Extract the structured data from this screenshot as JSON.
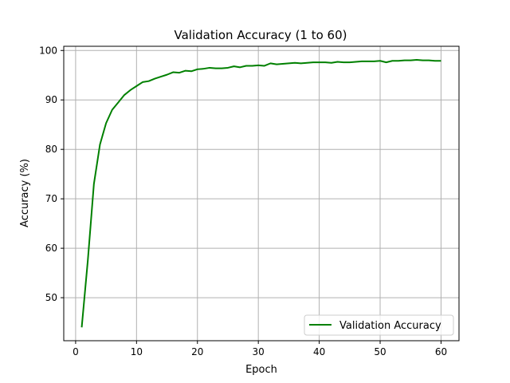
{
  "chart_data": {
    "type": "line",
    "title": "Validation Accuracy (1 to 60)",
    "xlabel": "Epoch",
    "ylabel": "Accuracy (%)",
    "xlim": [
      -1.95,
      62.95
    ],
    "ylim": [
      41.3,
      100.85
    ],
    "xticks": [
      0,
      10,
      20,
      30,
      40,
      50,
      60
    ],
    "yticks": [
      50,
      60,
      70,
      80,
      90,
      100
    ],
    "grid": true,
    "legend_position": "lower right",
    "series": [
      {
        "name": "Validation Accuracy",
        "color": "#008000",
        "x": [
          1,
          2,
          3,
          4,
          5,
          6,
          7,
          8,
          9,
          10,
          11,
          12,
          13,
          14,
          15,
          16,
          17,
          18,
          19,
          20,
          21,
          22,
          23,
          24,
          25,
          26,
          27,
          28,
          29,
          30,
          31,
          32,
          33,
          34,
          35,
          36,
          37,
          38,
          39,
          40,
          41,
          42,
          43,
          44,
          45,
          46,
          47,
          48,
          49,
          50,
          51,
          52,
          53,
          54,
          55,
          56,
          57,
          58,
          59,
          60
        ],
        "y": [
          44.0,
          57.5,
          73.0,
          81.0,
          85.3,
          88.0,
          89.5,
          91.0,
          92.0,
          92.8,
          93.6,
          93.8,
          94.3,
          94.7,
          95.1,
          95.6,
          95.5,
          95.9,
          95.8,
          96.2,
          96.3,
          96.5,
          96.4,
          96.4,
          96.5,
          96.8,
          96.6,
          96.9,
          96.9,
          97.0,
          96.9,
          97.4,
          97.2,
          97.3,
          97.4,
          97.5,
          97.4,
          97.5,
          97.6,
          97.6,
          97.6,
          97.5,
          97.7,
          97.6,
          97.6,
          97.7,
          97.8,
          97.8,
          97.8,
          97.9,
          97.6,
          97.9,
          97.9,
          98.0,
          98.0,
          98.1,
          98.0,
          98.0,
          97.9,
          97.9
        ]
      }
    ]
  }
}
